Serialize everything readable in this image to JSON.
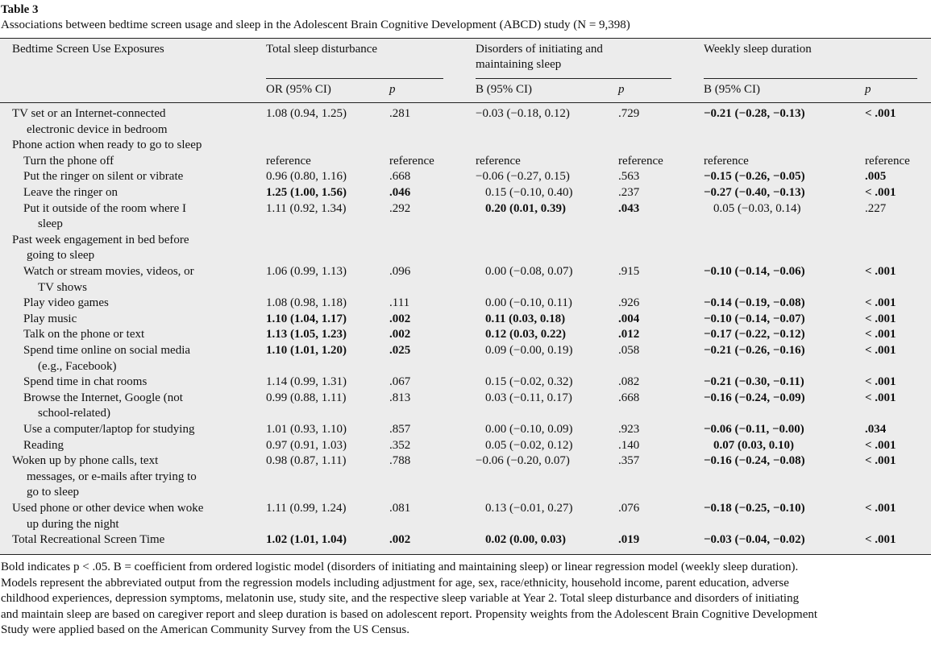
{
  "table": {
    "number": "Table 3",
    "caption": "Associations between bedtime screen usage and sleep in the Adolescent Brain Cognitive Development (ABCD) study (N = 9,398)",
    "stub_header": "Bedtime Screen Use Exposures",
    "groups": [
      "Total sleep disturbance",
      "Disorders of initiating and maintaining sleep",
      "Weekly sleep duration"
    ],
    "subheaders": [
      "OR (95% CI)",
      "p",
      "B (95% CI)",
      "p",
      "B (95% CI)",
      "p"
    ],
    "rows": [
      {
        "level": 0,
        "label": [
          "TV set or an Internet-connected",
          "electronic device in bedroom"
        ],
        "cells": [
          "1.08 (0.94, 1.25)",
          ".281",
          "−0.03 (−0.18, 0.12)",
          ".729",
          "−0.21 (−0.28, −0.13)",
          "< .001"
        ],
        "bold": [
          4,
          5
        ]
      },
      {
        "level": 0,
        "label": [
          "Phone action when ready to go to sleep"
        ]
      },
      {
        "level": 1,
        "label": [
          "Turn the phone off"
        ],
        "cells": [
          "reference",
          "reference",
          "reference",
          "reference",
          "reference",
          "reference"
        ],
        "bold": []
      },
      {
        "level": 1,
        "label": [
          "Put the ringer on silent or vibrate"
        ],
        "cells": [
          "0.96 (0.80, 1.16)",
          ".668",
          "−0.06 (−0.27, 0.15)",
          ".563",
          "−0.15 (−0.26, −0.05)",
          ".005"
        ],
        "bold": [
          4,
          5
        ]
      },
      {
        "level": 1,
        "label": [
          "Leave the ringer on"
        ],
        "cells": [
          "1.25 (1.00, 1.56)",
          ".046",
          "0.15 (−0.10, 0.40)",
          ".237",
          "−0.27 (−0.40, −0.13)",
          "< .001"
        ],
        "bold": [
          0,
          1,
          4,
          5
        ]
      },
      {
        "level": 1,
        "label": [
          "Put it outside of the room where I",
          "sleep"
        ],
        "cells": [
          "1.11 (0.92, 1.34)",
          ".292",
          "0.20 (0.01, 0.39)",
          ".043",
          "0.05 (−0.03, 0.14)",
          ".227"
        ],
        "bold": [
          2,
          3
        ]
      },
      {
        "level": 0,
        "label": [
          "Past week engagement in bed before",
          "going to sleep"
        ]
      },
      {
        "level": 1,
        "label": [
          "Watch or stream movies, videos, or",
          "TV shows"
        ],
        "cells": [
          "1.06 (0.99, 1.13)",
          ".096",
          "0.00 (−0.08, 0.07)",
          ".915",
          "−0.10 (−0.14, −0.06)",
          "< .001"
        ],
        "bold": [
          4,
          5
        ]
      },
      {
        "level": 1,
        "label": [
          "Play video games"
        ],
        "cells": [
          "1.08 (0.98, 1.18)",
          ".111",
          "0.00 (−0.10, 0.11)",
          ".926",
          "−0.14 (−0.19, −0.08)",
          "< .001"
        ],
        "bold": [
          4,
          5
        ]
      },
      {
        "level": 1,
        "label": [
          "Play music"
        ],
        "cells": [
          "1.10 (1.04, 1.17)",
          ".002",
          "0.11 (0.03, 0.18)",
          ".004",
          "−0.10 (−0.14, −0.07)",
          "< .001"
        ],
        "bold": [
          0,
          1,
          2,
          3,
          4,
          5
        ]
      },
      {
        "level": 1,
        "label": [
          "Talk on the phone or text"
        ],
        "cells": [
          "1.13 (1.05, 1.23)",
          ".002",
          "0.12 (0.03, 0.22)",
          ".012",
          "−0.17 (−0.22, −0.12)",
          "< .001"
        ],
        "bold": [
          0,
          1,
          2,
          3,
          4,
          5
        ]
      },
      {
        "level": 1,
        "label": [
          "Spend time online on social media",
          "(e.g., Facebook)"
        ],
        "cells": [
          "1.10 (1.01, 1.20)",
          ".025",
          "0.09 (−0.00, 0.19)",
          ".058",
          "−0.21 (−0.26, −0.16)",
          "< .001"
        ],
        "bold": [
          0,
          1,
          4,
          5
        ]
      },
      {
        "level": 1,
        "label": [
          "Spend time in chat rooms"
        ],
        "cells": [
          "1.14 (0.99, 1.31)",
          ".067",
          "0.15 (−0.02, 0.32)",
          ".082",
          "−0.21 (−0.30, −0.11)",
          "< .001"
        ],
        "bold": [
          4,
          5
        ]
      },
      {
        "level": 1,
        "label": [
          "Browse the Internet, Google (not",
          "school-related)"
        ],
        "cells": [
          "0.99 (0.88, 1.11)",
          ".813",
          "0.03 (−0.11, 0.17)",
          ".668",
          "−0.16 (−0.24, −0.09)",
          "< .001"
        ],
        "bold": [
          4,
          5
        ]
      },
      {
        "level": 1,
        "label": [
          "Use a computer/laptop for studying"
        ],
        "cells": [
          "1.01 (0.93, 1.10)",
          ".857",
          "0.00 (−0.10, 0.09)",
          ".923",
          "−0.06 (−0.11, −0.00)",
          ".034"
        ],
        "bold": [
          4,
          5
        ]
      },
      {
        "level": 1,
        "label": [
          "Reading"
        ],
        "cells": [
          "0.97 (0.91, 1.03)",
          ".352",
          "0.05 (−0.02, 0.12)",
          ".140",
          "0.07 (0.03, 0.10)",
          "< .001"
        ],
        "bold": [
          4,
          5
        ]
      },
      {
        "level": 0,
        "label": [
          "Woken up by phone calls, text",
          "messages, or e-mails after trying to",
          "go to sleep"
        ],
        "cells": [
          "0.98 (0.87, 1.11)",
          ".788",
          "−0.06 (−0.20, 0.07)",
          ".357",
          "−0.16 (−0.24, −0.08)",
          "< .001"
        ],
        "bold": [
          4,
          5
        ]
      },
      {
        "level": 0,
        "label": [
          "Used phone or other device when woke",
          "up during the night"
        ],
        "cells": [
          "1.11 (0.99, 1.24)",
          ".081",
          "0.13 (−0.01, 0.27)",
          ".076",
          "−0.18 (−0.25, −0.10)",
          "< .001"
        ],
        "bold": [
          4,
          5
        ]
      },
      {
        "level": 0,
        "label": [
          "Total Recreational Screen Time"
        ],
        "cells": [
          "1.02 (1.01, 1.04)",
          ".002",
          "0.02 (0.00, 0.03)",
          ".019",
          "−0.03 (−0.04, −0.02)",
          "< .001"
        ],
        "bold": [
          0,
          1,
          2,
          3,
          4,
          5
        ]
      }
    ],
    "footnote": [
      "Bold indicates p < .05. B = coefficient from ordered logistic model (disorders of initiating and maintaining sleep) or linear regression model (weekly sleep duration).",
      "Models represent the abbreviated output from the regression models including adjustment for age, sex, race/ethnicity, household income, parent education, adverse",
      "childhood experiences, depression symptoms, melatonin use, study site, and the respective sleep variable at Year 2. Total sleep disturbance and disorders of initiating",
      "and maintain sleep are based on caregiver report and sleep duration is based on adolescent report. Propensity weights from the Adolescent Brain Cognitive Development",
      "Study were applied based on the American Community Survey from the US Census."
    ]
  }
}
